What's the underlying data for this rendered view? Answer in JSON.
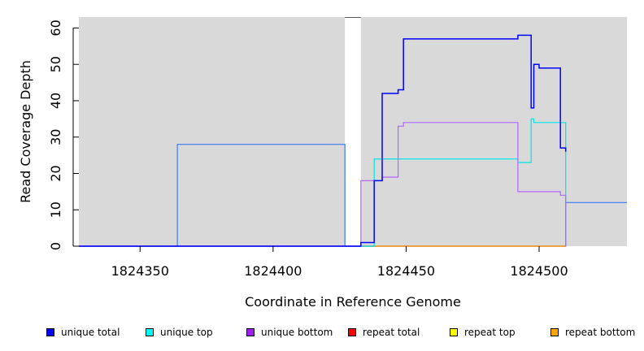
{
  "chart_data": {
    "type": "line",
    "xlabel": "Coordinate in Reference Genome",
    "ylabel": "Read Coverage Depth",
    "xlim": [
      1824327,
      1824533
    ],
    "ylim": [
      0,
      63
    ],
    "x_ticks": [
      1824350,
      1824400,
      1824450,
      1824500
    ],
    "x_tick_labels": [
      "1824350",
      "1824400",
      "1824450",
      "1824500"
    ],
    "y_ticks": [
      0,
      10,
      20,
      30,
      40,
      50,
      60
    ],
    "y_tick_labels": [
      "0",
      "10",
      "20",
      "30",
      "40",
      "50",
      "60"
    ],
    "background_color": "#d9d9d9",
    "uncovered_interval": [
      1824427,
      1824433
    ],
    "grid": false,
    "legend_position": "bottom",
    "series": [
      {
        "name": "unique total",
        "color": "#0000ff",
        "swatch": "#0000ff",
        "x": [
          1824327,
          1824431,
          1824433,
          1824438,
          1824441,
          1824447,
          1824449,
          1824492,
          1824497,
          1824498,
          1824500,
          1824508,
          1824510
        ],
        "y": [
          0,
          0,
          1,
          18,
          42,
          43,
          57,
          58,
          38,
          50,
          49,
          27,
          26
        ]
      },
      {
        "name": "unique top",
        "color": "#00e5e5",
        "swatch": "#00ffff",
        "x": [
          1824327,
          1824438,
          1824492,
          1824497,
          1824498,
          1824510
        ],
        "y": [
          0,
          24,
          23,
          35,
          34,
          12
        ]
      },
      {
        "name": "unique bottom",
        "color": "#b266ff",
        "swatch": "#a020f0",
        "x": [
          1824327,
          1824431,
          1824433,
          1824441,
          1824447,
          1824449,
          1824492,
          1824508,
          1824510
        ],
        "y": [
          0,
          0,
          18,
          19,
          33,
          34,
          15,
          14,
          0
        ]
      },
      {
        "name": "repeat total",
        "color": "#ff0000",
        "swatch": "#ff0000",
        "x": [
          1824327,
          1824427,
          1824433,
          1824510
        ],
        "y": [
          0,
          0,
          0,
          0
        ]
      },
      {
        "name": "repeat top",
        "color": "#ffff00",
        "swatch": "#ffff00",
        "x": [],
        "y": []
      },
      {
        "name": "repeat bottom",
        "color": "#ffa500",
        "swatch": "#ffa500",
        "x": [
          1824433,
          1824510
        ],
        "y": [
          0,
          0
        ]
      },
      {
        "name": "",
        "color": "#3b78ff",
        "x": [
          1824327,
          1824364,
          1824427,
          1824510
        ],
        "y": [
          0,
          28,
          0,
          12
        ]
      }
    ]
  }
}
